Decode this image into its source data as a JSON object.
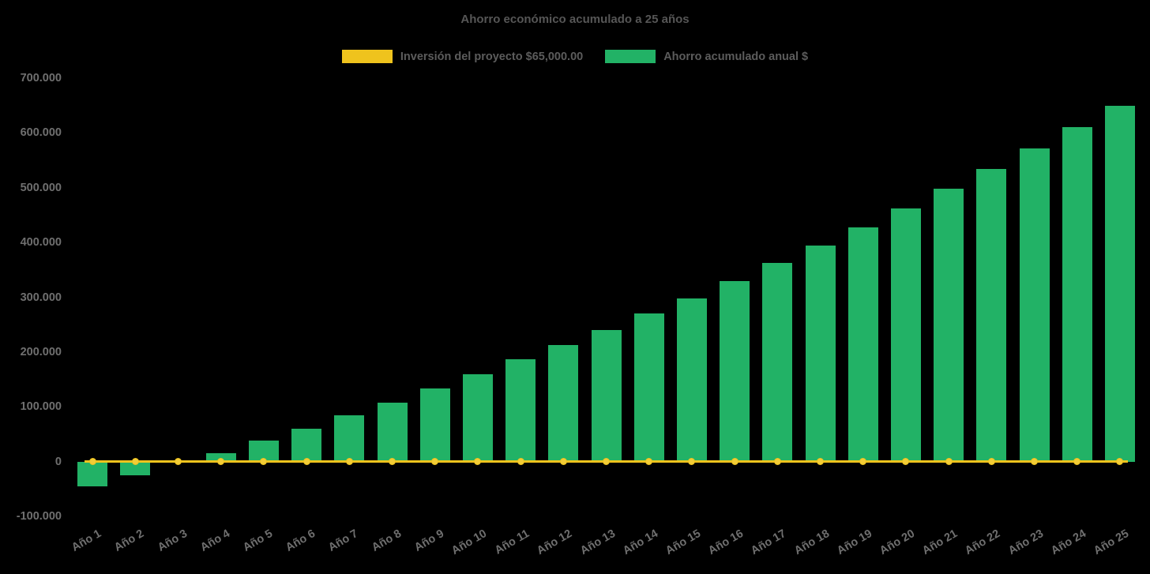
{
  "chart_data": {
    "type": "bar",
    "title": "Ahorro económico acumulado a 25 años",
    "legend_position": "top",
    "grid": false,
    "background_color": "#000000",
    "text_color": "#6f6f6f",
    "categories": [
      "Año 1",
      "Año 2",
      "Año 3",
      "Año 4",
      "Año 5",
      "Año 6",
      "Año 7",
      "Año 8",
      "Año 9",
      "Año 10",
      "Año 11",
      "Año 12",
      "Año 13",
      "Año 14",
      "Año 15",
      "Año 16",
      "Año 17",
      "Año 18",
      "Año 19",
      "Año 20",
      "Año 21",
      "Año 22",
      "Año 23",
      "Año 24",
      "Año 25"
    ],
    "series": [
      {
        "name": "Inversión del proyecto $65,000.00",
        "type": "line",
        "color": "#efc31d",
        "marker_color": "#f3cd37",
        "values": [
          0,
          0,
          0,
          0,
          0,
          0,
          0,
          0,
          0,
          0,
          0,
          0,
          0,
          0,
          0,
          0,
          0,
          0,
          0,
          0,
          0,
          0,
          0,
          0,
          0
        ]
      },
      {
        "name": "Ahorro acumulado anual $",
        "type": "bar",
        "color": "#22b266",
        "values": [
          -45000,
          -25000,
          2000,
          15000,
          38000,
          60000,
          85000,
          108000,
          133000,
          160000,
          187000,
          213000,
          240000,
          270000,
          298000,
          330000,
          362000,
          394000,
          428000,
          462000,
          498000,
          534000,
          572000,
          610000,
          650000
        ]
      }
    ],
    "ylim": [
      -100000,
      700000
    ],
    "y_tick_values": [
      700000,
      600000,
      500000,
      400000,
      300000,
      200000,
      100000,
      0,
      -100000
    ],
    "y_tick_labels": [
      "700.000",
      "600.000",
      "500.000",
      "400.000",
      "300.000",
      "200.000",
      "100.000",
      "0",
      "-100.000"
    ],
    "xlabel": "",
    "ylabel": ""
  }
}
